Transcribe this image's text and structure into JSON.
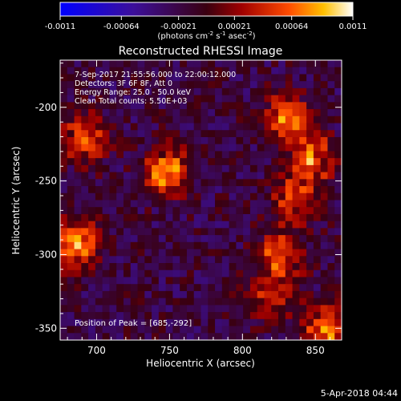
{
  "chart_data": {
    "type": "heatmap",
    "title": "Reconstructed RHESSI Image",
    "colorbar": {
      "tick_labels": [
        "-0.0011",
        "-0.00064",
        "-0.00021",
        "0.00021",
        "0.00064",
        "0.0011"
      ],
      "tick_values": [
        -0.0011,
        -0.00064,
        -0.00021,
        0.00021,
        0.00064,
        0.0011
      ],
      "range": [
        -0.0011,
        0.0011
      ],
      "unit_main": "(photons cm",
      "unit_sup1": "-2",
      "unit_mid": " s",
      "unit_sup2": "-1",
      "unit_end": " asec",
      "unit_sup3": "-2",
      "unit_close": ")"
    },
    "xlabel": "Heliocentric X (arcsec)",
    "ylabel": "Heliocentric Y (arcsec)",
    "xlim": [
      675,
      868
    ],
    "ylim": [
      -358,
      -168
    ],
    "xticks": [
      700,
      750,
      800,
      850
    ],
    "yticks": [
      -200,
      -250,
      -300,
      -350
    ],
    "info_lines": [
      "7-Sep-2017 21:55:56.000 to 22:00:12.000",
      "Detectors: 3F 6F 8F, Att 0",
      "Energy Range: 25.0 - 50.0 keV",
      "Clean     Total counts: 5.50E+03"
    ],
    "peak_label": "Position of Peak = [685,-292]",
    "sources": [
      {
        "x": 685,
        "y": -292,
        "peak": 0.0011
      },
      {
        "x": 692,
        "y": -222,
        "peak": 0.0008
      },
      {
        "x": 748,
        "y": -244,
        "peak": 0.00095
      },
      {
        "x": 830,
        "y": -208,
        "peak": 0.0009
      },
      {
        "x": 848,
        "y": -235,
        "peak": 0.0008
      },
      {
        "x": 836,
        "y": -262,
        "peak": 0.00075
      },
      {
        "x": 826,
        "y": -300,
        "peak": 0.0008
      },
      {
        "x": 818,
        "y": -330,
        "peak": 0.0006
      },
      {
        "x": 858,
        "y": -350,
        "peak": 0.00085
      }
    ],
    "colormap": "red-temperature (blue negative to white positive)"
  },
  "timestamp": "5-Apr-2018 04:44"
}
